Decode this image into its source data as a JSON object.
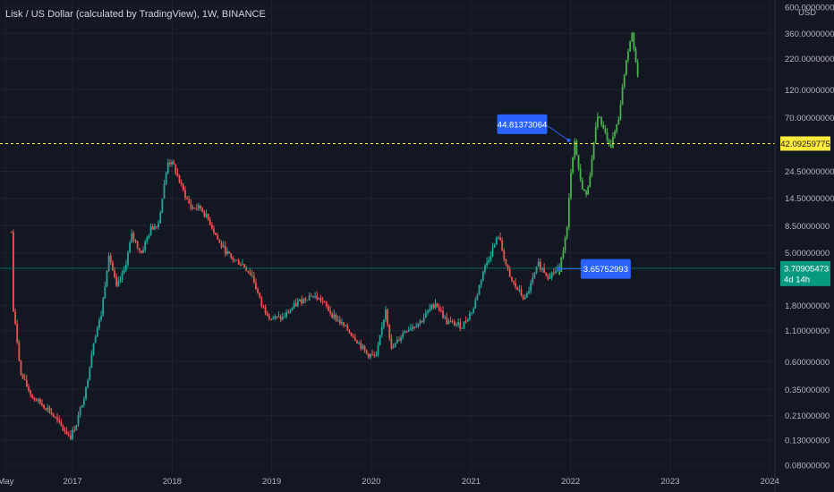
{
  "header": {
    "title": "Lisk / US Dollar (calculated by TradingView), 1W, BINANCE"
  },
  "colors": {
    "background": "#131722",
    "up": "#26a69a",
    "down": "#ef5350",
    "projection": "#4caf50",
    "grid": "#1e2230",
    "dashed_level": "#ffeb3b",
    "current_price": "#089981",
    "annotation": "#2962ff"
  },
  "chart_data": {
    "type": "candlestick",
    "scale": "log",
    "unit": "USD",
    "ylim": [
      0.08,
      600
    ],
    "y_ticks": [
      {
        "value": 600,
        "label": "600.00000000"
      },
      {
        "value": 360,
        "label": "360.00000000"
      },
      {
        "value": 220,
        "label": "220.00000000"
      },
      {
        "value": 120,
        "label": "120.00000000"
      },
      {
        "value": 70,
        "label": "70.00000000"
      },
      {
        "value": 24.5,
        "label": "24.50000000"
      },
      {
        "value": 14.5,
        "label": "14.50000000"
      },
      {
        "value": 8.5,
        "label": "8.50000000"
      },
      {
        "value": 5,
        "label": "5.00000000"
      },
      {
        "value": 1.8,
        "label": "1.80000000"
      },
      {
        "value": 1.1,
        "label": "1.10000000"
      },
      {
        "value": 0.6,
        "label": "0.60000000"
      },
      {
        "value": 0.35,
        "label": "0.35000000"
      },
      {
        "value": 0.21,
        "label": "0.21000000"
      },
      {
        "value": 0.13,
        "label": "0.13000000"
      },
      {
        "value": 0.08,
        "label": "0.08000000"
      }
    ],
    "x_ticks": [
      "May",
      "2017",
      "2018",
      "2019",
      "2020",
      "2021",
      "2022",
      "2023",
      "2024"
    ],
    "x_tick_dates": [
      "2016-05-01",
      "2017-01-01",
      "2018-01-01",
      "2019-01-01",
      "2020-01-01",
      "2021-01-01",
      "2022-01-01",
      "2023-01-01",
      "2024-01-01"
    ],
    "xlim": [
      "2016-04-10",
      "2024-01-20"
    ],
    "dashed_level": {
      "value": 42.09259775,
      "label": "42.09259775"
    },
    "current_price": {
      "value": 3.70905473,
      "label": "3.70905473",
      "countdown": "4d 14h"
    },
    "axis_unit_label": "USD",
    "annotations": [
      {
        "label": "44.81373064",
        "date": "2021-12-25",
        "value": 44.81373064
      },
      {
        "label": "3.65752993",
        "date": "2021-11-20",
        "value": 3.65752993
      }
    ],
    "history_anchors": [
      [
        "2016-05-22",
        7.5
      ],
      [
        "2016-05-29",
        1.6
      ],
      [
        "2016-06-12",
        0.9
      ],
      [
        "2016-06-26",
        0.46
      ],
      [
        "2016-08-07",
        0.3
      ],
      [
        "2016-10-02",
        0.24
      ],
      [
        "2016-11-27",
        0.16
      ],
      [
        "2016-12-25",
        0.14
      ],
      [
        "2017-01-15",
        0.18
      ],
      [
        "2017-02-19",
        0.35
      ],
      [
        "2017-03-19",
        0.9
      ],
      [
        "2017-04-16",
        1.5
      ],
      [
        "2017-05-14",
        5
      ],
      [
        "2017-06-11",
        2.5
      ],
      [
        "2017-07-09",
        3.5
      ],
      [
        "2017-08-06",
        7
      ],
      [
        "2017-09-10",
        5
      ],
      [
        "2017-10-15",
        8
      ],
      [
        "2017-11-12",
        9
      ],
      [
        "2017-12-17",
        30
      ],
      [
        "2018-01-07",
        27
      ],
      [
        "2018-02-04",
        18
      ],
      [
        "2018-03-11",
        12
      ],
      [
        "2018-04-15",
        12
      ],
      [
        "2018-05-20",
        9
      ],
      [
        "2018-06-24",
        6
      ],
      [
        "2018-08-05",
        4.5
      ],
      [
        "2018-09-16",
        4
      ],
      [
        "2018-10-21",
        3.2
      ],
      [
        "2018-11-25",
        1.8
      ],
      [
        "2018-12-30",
        1.4
      ],
      [
        "2019-02-10",
        1.4
      ],
      [
        "2019-04-07",
        1.9
      ],
      [
        "2019-05-26",
        2.2
      ],
      [
        "2019-06-30",
        2.0
      ],
      [
        "2019-08-11",
        1.5
      ],
      [
        "2019-09-22",
        1.2
      ],
      [
        "2019-11-03",
        0.95
      ],
      [
        "2019-12-15",
        0.7
      ],
      [
        "2020-01-19",
        0.65
      ],
      [
        "2020-02-23",
        1.7
      ],
      [
        "2020-03-15",
        0.75
      ],
      [
        "2020-05-03",
        1.1
      ],
      [
        "2020-06-28",
        1.3
      ],
      [
        "2020-08-23",
        1.9
      ],
      [
        "2020-10-04",
        1.3
      ],
      [
        "2020-11-29",
        1.2
      ],
      [
        "2021-01-10",
        1.7
      ],
      [
        "2021-02-14",
        3.5
      ],
      [
        "2021-04-11",
        7
      ],
      [
        "2021-05-23",
        3
      ],
      [
        "2021-07-18",
        2.0
      ],
      [
        "2021-09-05",
        4
      ],
      [
        "2021-10-10",
        3.2
      ],
      [
        "2021-11-21",
        3.65
      ]
    ],
    "projection_anchors": [
      [
        "2021-11-21",
        3.65
      ],
      [
        "2021-12-19",
        8
      ],
      [
        "2022-01-02",
        25
      ],
      [
        "2022-01-16",
        44
      ],
      [
        "2022-02-06",
        20
      ],
      [
        "2022-02-27",
        15
      ],
      [
        "2022-03-20",
        30
      ],
      [
        "2022-04-10",
        75
      ],
      [
        "2022-05-01",
        55
      ],
      [
        "2022-05-29",
        40
      ],
      [
        "2022-06-26",
        70
      ],
      [
        "2022-07-24",
        220
      ],
      [
        "2022-08-14",
        380
      ],
      [
        "2022-09-04",
        150
      ]
    ]
  }
}
